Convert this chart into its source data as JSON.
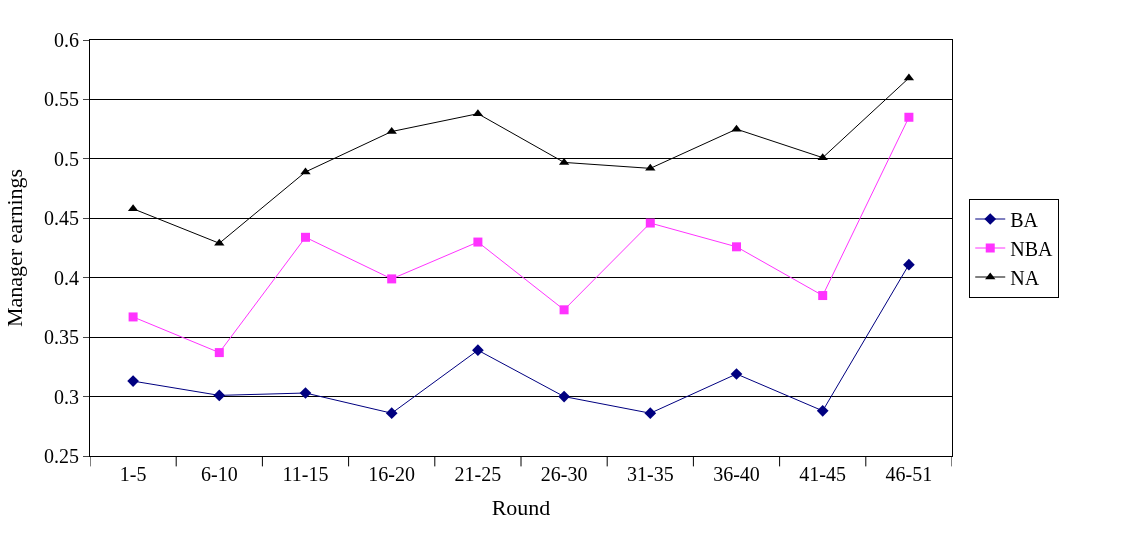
{
  "chart_data": {
    "type": "line",
    "xlabel": "Round",
    "ylabel": "Manager earnings",
    "categories": [
      "1-5",
      "6-10",
      "11-15",
      "16-20",
      "21-25",
      "26-30",
      "31-35",
      "36-40",
      "41-45",
      "46-51"
    ],
    "series": [
      {
        "name": "BA",
        "color": "#000080",
        "marker": "diamond",
        "values": [
          0.313,
          0.301,
          0.303,
          0.286,
          0.339,
          0.3,
          0.286,
          0.319,
          0.288,
          0.411
        ]
      },
      {
        "name": "NBA",
        "color": "#ff33ff",
        "marker": "square",
        "values": [
          0.367,
          0.337,
          0.434,
          0.399,
          0.43,
          0.373,
          0.446,
          0.426,
          0.385,
          0.535
        ]
      },
      {
        "name": "NA",
        "color": "#000000",
        "marker": "triangle",
        "values": [
          0.458,
          0.429,
          0.489,
          0.523,
          0.538,
          0.497,
          0.492,
          0.525,
          0.501,
          0.568
        ]
      }
    ],
    "ylim": [
      0.25,
      0.6
    ],
    "yticks": [
      0.25,
      0.3,
      0.35,
      0.4,
      0.45,
      0.5,
      0.55,
      0.6
    ],
    "grid": "y",
    "legend": "right",
    "line_style": "solid"
  }
}
